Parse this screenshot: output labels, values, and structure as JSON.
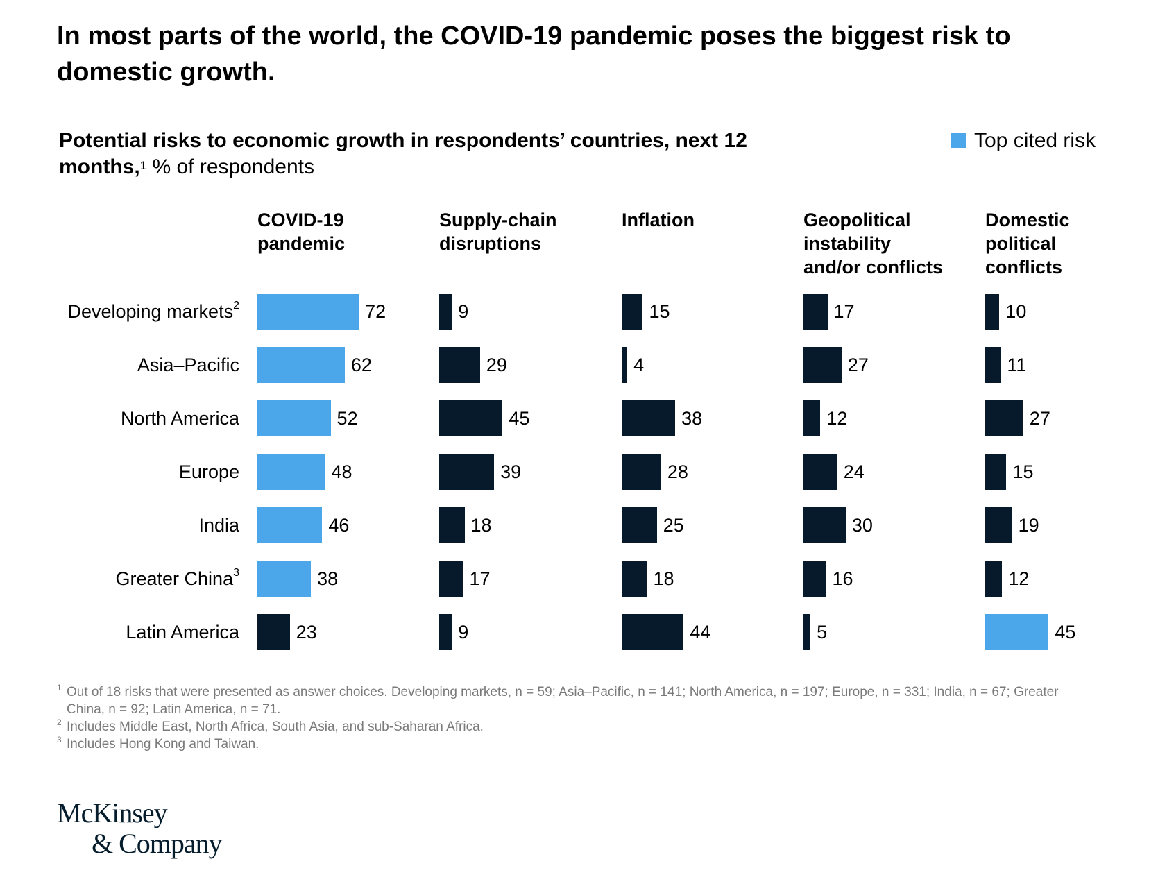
{
  "title": "In most parts of the world, the COVID-19 pandemic poses the biggest risk to domestic growth.",
  "subtitle": {
    "bold_text": "Potential risks to economic growth in respondents’ countries, next 12 months,",
    "footnote_mark": "1",
    "regular_text": " % of respondents"
  },
  "legend": {
    "label": "Top cited risk",
    "color": "#4ba6ea"
  },
  "colors": {
    "highlight": "#4ba6ea",
    "default": "#071a2b"
  },
  "chart_data": {
    "type": "bar",
    "orientation": "horizontal",
    "unit": "% of respondents",
    "categories": [
      {
        "label": "Developing markets",
        "sup": "2"
      },
      {
        "label": "Asia–Pacific",
        "sup": ""
      },
      {
        "label": "North America",
        "sup": ""
      },
      {
        "label": "Europe",
        "sup": ""
      },
      {
        "label": "India",
        "sup": ""
      },
      {
        "label": "Greater China",
        "sup": "3"
      },
      {
        "label": "Latin America",
        "sup": ""
      }
    ],
    "series": [
      {
        "name": "COVID-19\npandemic",
        "values": [
          72,
          62,
          52,
          48,
          46,
          38,
          23
        ],
        "top_cited": [
          true,
          true,
          true,
          true,
          true,
          true,
          false
        ]
      },
      {
        "name": "Supply-chain\ndisruptions",
        "values": [
          9,
          29,
          45,
          39,
          18,
          17,
          9
        ],
        "top_cited": [
          false,
          false,
          false,
          false,
          false,
          false,
          false
        ]
      },
      {
        "name": "Inflation",
        "values": [
          15,
          4,
          38,
          28,
          25,
          18,
          44
        ],
        "top_cited": [
          false,
          false,
          false,
          false,
          false,
          false,
          false
        ]
      },
      {
        "name": "Geopolitical\ninstability\nand/or conflicts",
        "values": [
          17,
          27,
          12,
          24,
          30,
          16,
          5
        ],
        "top_cited": [
          false,
          false,
          false,
          false,
          false,
          false,
          false
        ]
      },
      {
        "name": "Domestic\npolitical\nconflicts",
        "values": [
          10,
          11,
          27,
          15,
          19,
          12,
          45
        ],
        "top_cited": [
          false,
          false,
          false,
          false,
          false,
          false,
          true
        ]
      }
    ]
  },
  "footnotes": [
    {
      "mark": "1",
      "text": "Out of 18 risks that were presented as answer choices. Developing markets, n = 59; Asia–Pacific, n = 141; North America, n = 197; Europe, n = 331; India, n = 67; Greater China, n = 92; Latin America, n = 71."
    },
    {
      "mark": "2",
      "text": "Includes Middle East, North Africa, South Asia, and sub-Saharan Africa."
    },
    {
      "mark": "3",
      "text": "Includes Hong Kong and Taiwan."
    }
  ],
  "logo": {
    "line1": "McKinsey",
    "line2": "& Company"
  }
}
